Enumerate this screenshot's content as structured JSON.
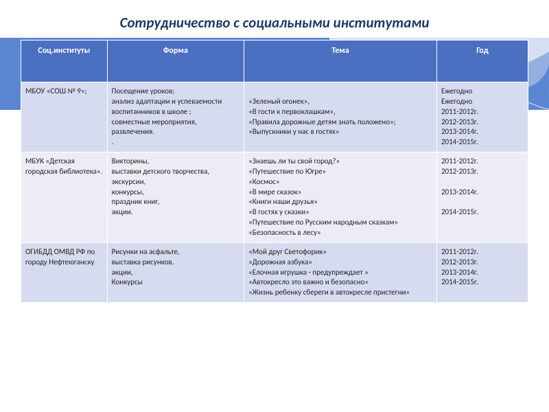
{
  "title": "Сотрудничество с социальными институтами",
  "colors": {
    "ribbon": "#5b86d1",
    "header_bg": "#4b6fc1",
    "header_text": "#ffffff",
    "row_odd": "#d6dbef",
    "row_even": "#ececf6",
    "title_color": "#1f3a66"
  },
  "table": {
    "columns": [
      "Соц.институты",
      "Форма",
      "Тема",
      "Год"
    ],
    "column_widths_pct": [
      17,
      27,
      38,
      18
    ],
    "rows": [
      {
        "inst": "МБОУ «СОШ № 9»;",
        "form": "Посещение уроков;\nанализ адаптации и успеваемости воспитанников в школе ;\nсовместные мероприятия,\nразвлечения.\n.",
        "theme": "\n«Зеленый огонек»,\n«В гости к первоклашкам»,\n«Правила дорожные детям знать положено»;\n«Выпускники у нас в гостях»",
        "year": "Ежегодно\nЕжегодно\n2011-2012г.\n2012-2013г.\n2013-2014г.\n2014-2015г."
      },
      {
        "inst": "МБУК «Детская городская библиотека».",
        "form": "Викторины,\nвыставки детского творчества,\nэкскурсии,\nконкурсы,\nпраздник книг,\nакции.",
        "theme": "«Знаешь ли ты свой город?»\n«Путешествие по Югре»\n«Космос»\n«В мире сказок»\n«Книги наши друзья»\n«В гостях у сказки»\n«Путешествие по Русским народным сказкам»\n«Безопасность в лесу»",
        "year": "2011-2012г.\n2012-2013г.\n\n2013-2014г.\n\n2014-2015г."
      },
      {
        "inst": "ОГИБДД ОМВД РФ по городу Нефтеюганску",
        "form": "Рисунки на асфальте,\nвыставка рисунков,\nакции,\nКонкурсы",
        "theme": "«Мой друг Светофорик»\n«Дорожная азбука»\n«Елочная игрушка - предупреждает »\n «Автокресло это важно и безопасно»\n«Жизнь ребенку сбереги в автокресле пристегни»",
        "year": "2011-2012г.\n2012-2013г.\n2013-2014г.\n2014-2015г."
      }
    ]
  }
}
